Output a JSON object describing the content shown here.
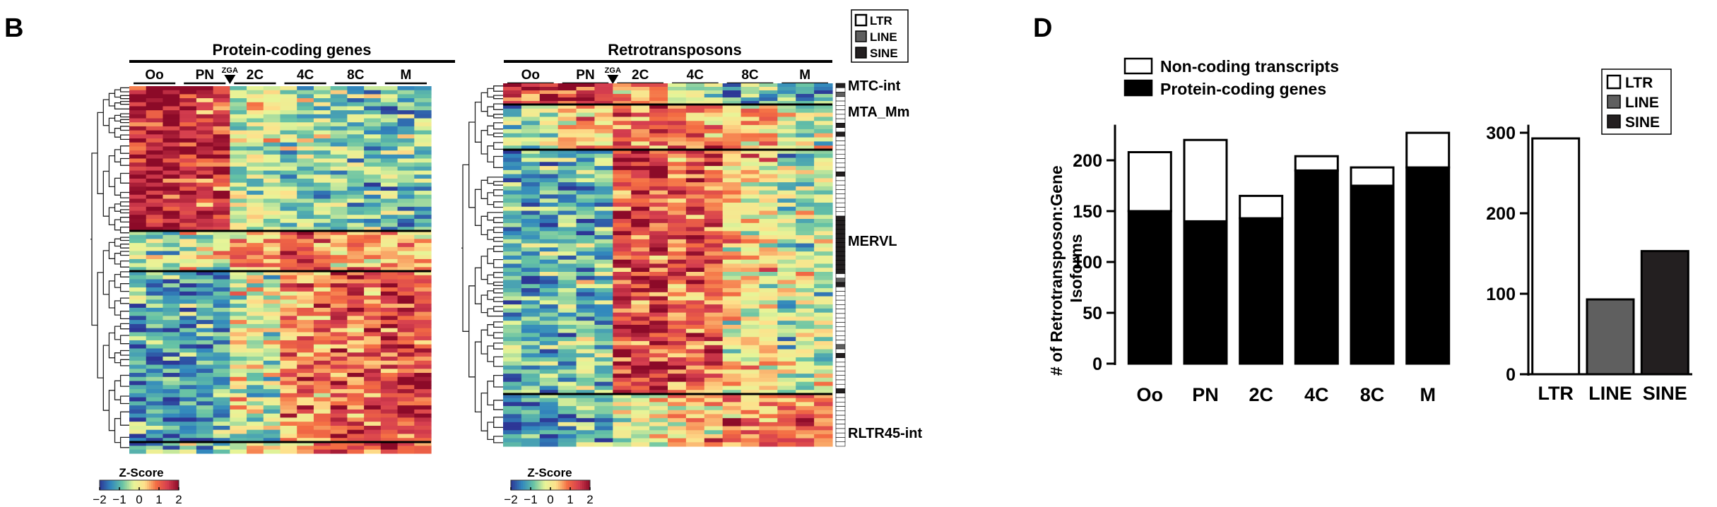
{
  "panels": {
    "B": {
      "label": "B",
      "heatmaps": [
        {
          "title": "Protein-coding genes",
          "stages": [
            "Oo",
            "PN",
            "2C",
            "4C",
            "8C",
            "M"
          ],
          "zga_label": "ZGA",
          "zscore": {
            "title": "Z-Score",
            "ticks": [
              "−2",
              "−1",
              "0",
              "1",
              "2"
            ]
          }
        },
        {
          "title": "Retrotransposons",
          "stages": [
            "Oo",
            "PN",
            "2C",
            "4C",
            "8C",
            "M"
          ],
          "zga_label": "ZGA",
          "zscore": {
            "title": "Z-Score",
            "ticks": [
              "−2",
              "−1",
              "0",
              "1",
              "2"
            ]
          },
          "row_labels": [
            "MTC-int",
            "MTA_Mm",
            "MERVL",
            "RLTR45-int"
          ]
        }
      ],
      "legend": [
        "LTR",
        "LINE",
        "SINE"
      ]
    },
    "D": {
      "label": "D",
      "colors": {
        "white": "#ffffff",
        "black": "#000000",
        "line_gray": "#5f5f5f",
        "sine_dark": "#231f20"
      }
    }
  },
  "chart_data": [
    {
      "type": "bar",
      "stacked": true,
      "categories": [
        "Oo",
        "PN",
        "2C",
        "4C",
        "8C",
        "M"
      ],
      "series": [
        {
          "name": "Protein-coding genes",
          "values": [
            150,
            140,
            143,
            190,
            175,
            193
          ]
        },
        {
          "name": "Non-coding transcripts",
          "values": [
            58,
            80,
            22,
            14,
            18,
            34
          ]
        }
      ],
      "ylabel_lines": [
        "# of Retrotransposon:Gene",
        "Isoforms"
      ],
      "yticks": [
        0,
        50,
        100,
        150,
        200
      ],
      "ylim": [
        0,
        235
      ],
      "legend_position": "top"
    },
    {
      "type": "bar",
      "categories": [
        "LTR",
        "LINE",
        "SINE"
      ],
      "values": [
        293,
        93,
        153
      ],
      "colors": [
        "#ffffff",
        "#5f5f5f",
        "#231f20"
      ],
      "yticks": [
        0,
        100,
        200,
        300
      ],
      "ylim": [
        0,
        310
      ],
      "legend": [
        "LTR",
        "LINE",
        "SINE"
      ],
      "legend_position": "top-right"
    }
  ]
}
